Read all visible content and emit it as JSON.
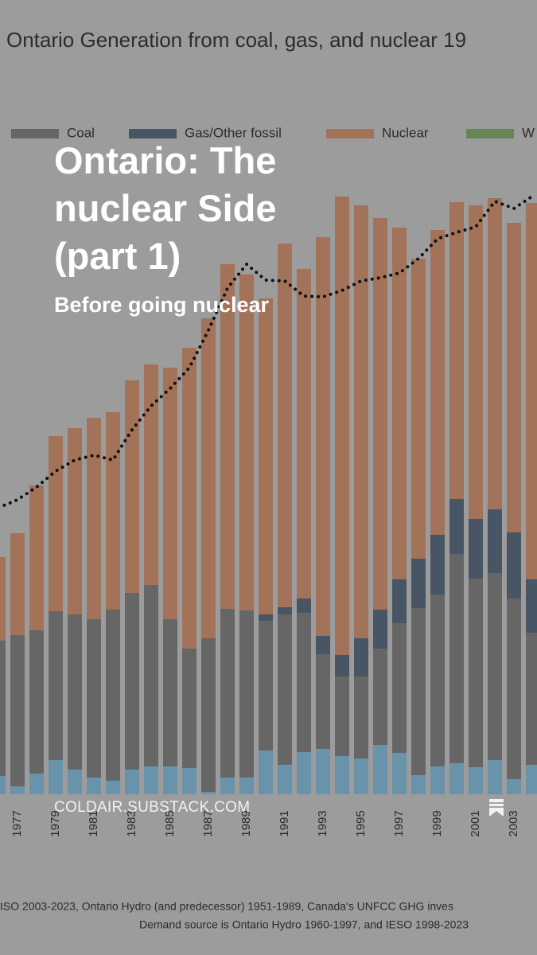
{
  "post": {
    "title": "Ontario: The nuclear Side (part 1)",
    "subtitle": "Before going nuclear",
    "site": "COLDAIR.SUBSTACK.COM"
  },
  "chart_data": {
    "type": "bar",
    "stacked": true,
    "title": "Ontario Generation from coal, gas, and nuclear 19",
    "source": [
      "ISO 2003-2023, Ontario Hydro (and predecessor) 1951-1989, Canada's UNFCC GHG inves",
      "Demand source is Ontario Hydro 1960-1997, and IESO 1998-2023"
    ],
    "categories": [
      null,
      "1977",
      null,
      "1979",
      null,
      "1981",
      null,
      "1983",
      null,
      "1985",
      null,
      "1987",
      null,
      "1989",
      null,
      "1991",
      null,
      "1993",
      null,
      "1995",
      null,
      "1997",
      null,
      "1999",
      null,
      "2001",
      null,
      "2003",
      null
    ],
    "ylim": [
      0,
      80
    ],
    "series": [
      {
        "color": "#6f9db5",
        "values": [
          2.3,
          1.0,
          2.6,
          4.3,
          3.1,
          2.1,
          1.7,
          3.1,
          3.5,
          3.5,
          3.3,
          0.3,
          2.1,
          2.1,
          5.5,
          3.7,
          5.3,
          5.7,
          4.8,
          4.5,
          6.2,
          5.2,
          2.4,
          3.5,
          3.9,
          3.4,
          4.3,
          1.9,
          3.7
        ]
      },
      {
        "name": "Coal",
        "color": "#6d6d6d",
        "values": [
          17.0,
          19.0,
          18.0,
          18.7,
          19.5,
          19.9,
          21.5,
          22.2,
          22.8,
          18.5,
          15.0,
          19.3,
          21.2,
          21.0,
          16.3,
          18.9,
          17.5,
          11.9,
          10.0,
          10.3,
          12.1,
          16.3,
          21.0,
          21.6,
          26.3,
          23.7,
          23.5,
          22.7,
          16.6
        ]
      },
      {
        "name": "Gas/Other fossil",
        "color": "#4c5b6c",
        "values": [
          0,
          0,
          0,
          0,
          0,
          0,
          0,
          0,
          0,
          0,
          0,
          0,
          0,
          0,
          0.8,
          0.9,
          1.8,
          2.3,
          2.7,
          4.8,
          4.9,
          5.5,
          6.2,
          7.5,
          6.9,
          7.5,
          8.0,
          8.3,
          6.7
        ]
      },
      {
        "name": "Nuclear",
        "color": "#ad7a5f",
        "values": [
          10.5,
          12.8,
          18.2,
          22.0,
          23.4,
          25.3,
          24.8,
          26.7,
          27.7,
          31.6,
          37.8,
          40.2,
          43.3,
          42.2,
          39.7,
          45.7,
          41.4,
          50.1,
          57.6,
          54.4,
          49.2,
          44.2,
          37.7,
          38.3,
          37.3,
          39.4,
          39.1,
          38.9,
          47.3
        ]
      },
      {
        "name": "W",
        "color": "#6d8f5a",
        "values": [
          null,
          null,
          null,
          null,
          null,
          null,
          null,
          null,
          null,
          null,
          null,
          null,
          null,
          null,
          null,
          null,
          null,
          null,
          null,
          null,
          null,
          null,
          null,
          null,
          null,
          null,
          null,
          null,
          null
        ]
      },
      {
        "type": "line",
        "color": "#111111",
        "values": [
          36.0,
          37.0,
          38.6,
          40.6,
          42.0,
          42.6,
          42.0,
          45.8,
          48.8,
          51.0,
          53.6,
          58.3,
          63.6,
          66.6,
          64.6,
          64.5,
          62.6,
          62.5,
          63.3,
          64.5,
          64.9,
          65.5,
          67.3,
          69.8,
          70.6,
          71.3,
          74.5,
          73.6,
          75.2
        ]
      }
    ]
  }
}
